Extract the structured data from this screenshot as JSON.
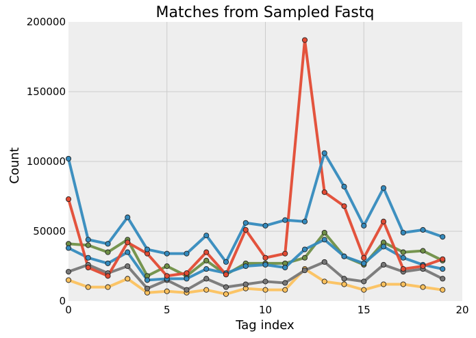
{
  "chart_data": {
    "type": "line",
    "title": "Matches from Sampled Fastq",
    "xlabel": "Tag index",
    "ylabel": "Count",
    "xlim": [
      0,
      20
    ],
    "ylim": [
      0,
      200000
    ],
    "x_ticks": [
      0,
      5,
      10,
      15,
      20
    ],
    "y_ticks": [
      0,
      50000,
      100000,
      150000,
      200000
    ],
    "x_tick_labels": [
      "0",
      "5",
      "10",
      "15",
      "20"
    ],
    "y_tick_labels": [
      "0",
      "50000",
      "100000",
      "150000",
      "200000"
    ],
    "grid": true,
    "x": [
      0,
      1,
      2,
      3,
      4,
      5,
      6,
      7,
      8,
      9,
      10,
      11,
      12,
      13,
      14,
      15,
      16,
      17,
      18,
      19
    ],
    "series": [
      {
        "color": "#e24a33",
        "values": [
          73000,
          24000,
          18000,
          42000,
          34000,
          18000,
          20000,
          35000,
          19000,
          51000,
          31000,
          34000,
          187000,
          78000,
          68000,
          31000,
          57000,
          23000,
          25000,
          30000
        ]
      },
      {
        "color": "#348abd",
        "values": [
          38000,
          31000,
          27000,
          35000,
          15000,
          16000,
          16000,
          23000,
          20000,
          25000,
          26000,
          24000,
          37000,
          44000,
          32000,
          27000,
          39000,
          31000,
          26000,
          23000
        ]
      },
      {
        "color": "#348abd",
        "values": [
          102000,
          44000,
          41000,
          60000,
          37000,
          34000,
          34000,
          47000,
          28000,
          56000,
          54000,
          58000,
          57000,
          106000,
          82000,
          54000,
          81000,
          49000,
          51000,
          46000
        ]
      },
      {
        "color": "#777777",
        "values": [
          21000,
          26000,
          20000,
          25000,
          9000,
          15000,
          8000,
          16000,
          10000,
          12000,
          14000,
          13000,
          22000,
          28000,
          16000,
          14000,
          26000,
          21000,
          23000,
          16000
        ]
      },
      {
        "color": "#988ed5",
        "values": [
          41000,
          40000,
          35000,
          44000,
          18000,
          25000,
          18000,
          29000,
          19000,
          27000,
          27000,
          27000,
          31000,
          49000,
          32000,
          26000,
          42000,
          35000,
          36000,
          29000
        ]
      },
      {
        "color": "#fbc15e",
        "values": [
          15000,
          10000,
          10000,
          16000,
          6000,
          7000,
          6000,
          8000,
          5000,
          9000,
          8000,
          8000,
          23000,
          14000,
          12000,
          8000,
          12000,
          12000,
          10000,
          8000
        ]
      }
    ]
  },
  "colors": {
    "plot_background": "#eeeeee",
    "grid": "#cccccc",
    "red": "#e24a33",
    "blue": "#348abd",
    "gray": "#777777",
    "green": "#6f8f46",
    "yellow": "#fbc15e"
  }
}
